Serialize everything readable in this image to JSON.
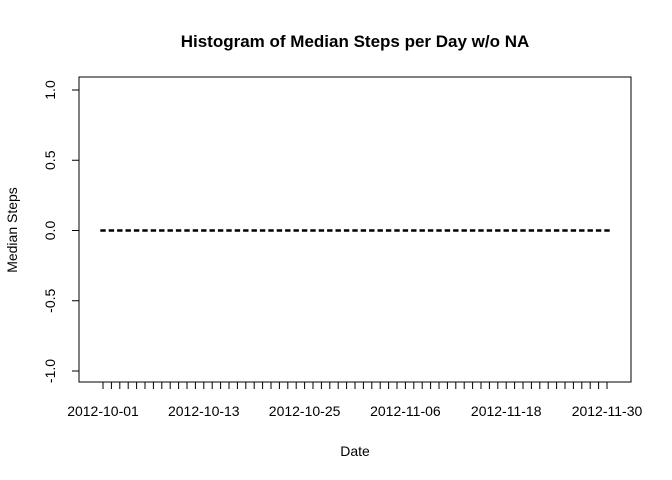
{
  "chart_data": {
    "type": "bar",
    "title": "Histogram of Median Steps per Day w/o NA",
    "xlabel": "Date",
    "ylabel": "Median Steps",
    "ylim": [
      -1.0,
      1.0
    ],
    "yticks": [
      "-1.0",
      "-0.5",
      "0.0",
      "0.5",
      "1.0"
    ],
    "x_start": "2012-10-01",
    "x_end": "2012-11-30",
    "xtick_labels": [
      "2012-10-01",
      "2012-10-13",
      "2012-10-25",
      "2012-11-06",
      "2012-11-18",
      "2012-11-30"
    ],
    "values": [
      0,
      0,
      0,
      0,
      0,
      0,
      0,
      0,
      0,
      0,
      0,
      0,
      0,
      0,
      0,
      0,
      0,
      0,
      0,
      0,
      0,
      0,
      0,
      0,
      0,
      0,
      0,
      0,
      0,
      0,
      0,
      0,
      0,
      0,
      0,
      0,
      0,
      0,
      0,
      0,
      0,
      0,
      0,
      0,
      0,
      0,
      0,
      0,
      0,
      0,
      0,
      0,
      0,
      0,
      0,
      0,
      0,
      0,
      0,
      0,
      0
    ],
    "grid": false
  }
}
